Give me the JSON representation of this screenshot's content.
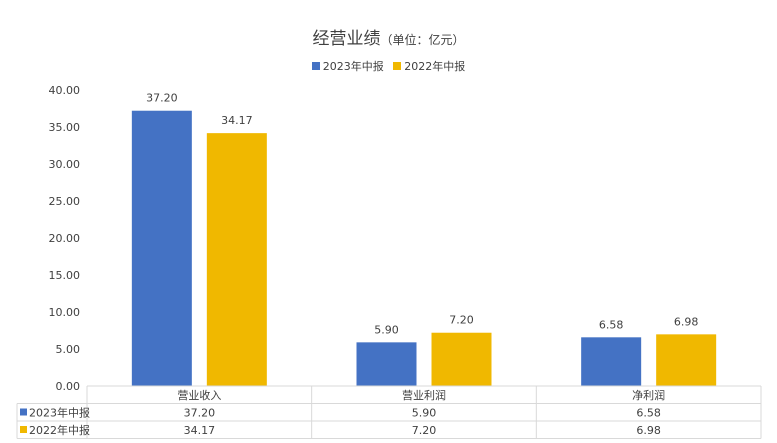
{
  "title": {
    "main": "经营业绩",
    "unit": "（单位：亿元）"
  },
  "chart_data": {
    "type": "bar",
    "title": "经营业绩（单位：亿元）",
    "categories": [
      "营业收入",
      "营业利润",
      "净利润"
    ],
    "series": [
      {
        "name": "2023年中报",
        "color": "#4472C4",
        "values": [
          37.2,
          5.9,
          6.58
        ],
        "labels": [
          "37.20",
          "5.90",
          "6.58"
        ]
      },
      {
        "name": "2022年中报",
        "color": "#F0B800",
        "values": [
          34.17,
          7.2,
          6.98
        ],
        "labels": [
          "34.17",
          "7.20",
          "6.98"
        ]
      }
    ],
    "ylim": [
      0,
      40
    ],
    "yticks": [
      "0.00",
      "5.00",
      "10.00",
      "15.00",
      "20.00",
      "25.00",
      "30.00",
      "35.00",
      "40.00"
    ],
    "legend_position": "top",
    "data_table": true,
    "grid": false
  }
}
